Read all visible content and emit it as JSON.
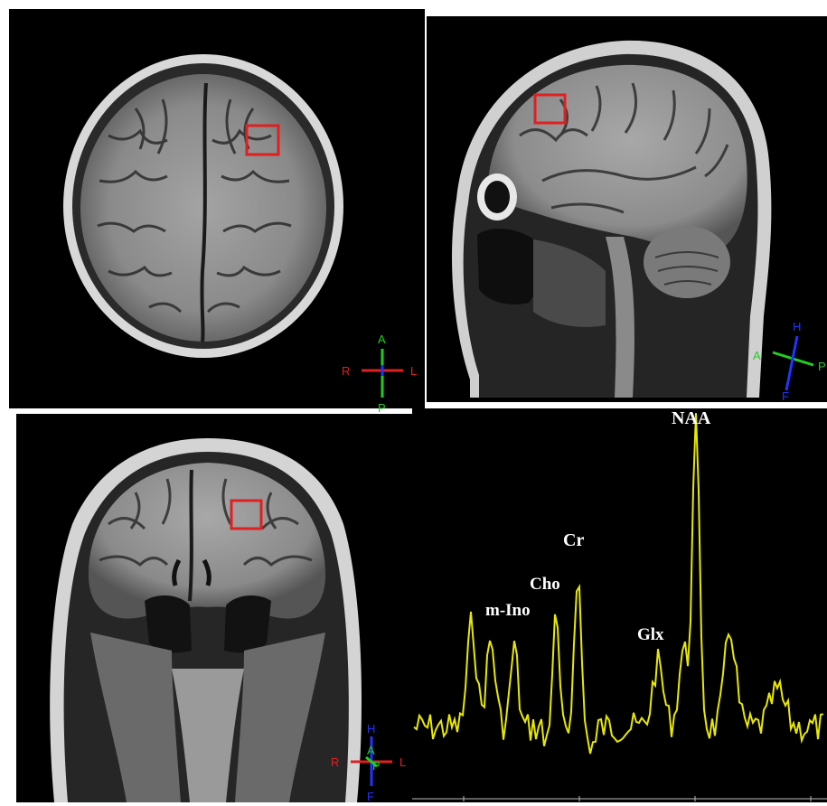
{
  "colors": {
    "roi_box": "#e02020",
    "spectrum_line": "#e8e800",
    "orient_rl": "#e02020",
    "orient_ap": "#22cc22",
    "orient_hf": "#2233ff",
    "panel_bg": "#000000"
  },
  "panels": {
    "axial": {
      "orientation": {
        "anterior": "A",
        "posterior": "P",
        "right": "R",
        "left": "L"
      }
    },
    "sagittal": {
      "orientation": {
        "head": "H",
        "foot": "F",
        "anterior": "A",
        "posterior": "P"
      }
    },
    "coronal": {
      "orientation": {
        "head": "H",
        "foot": "F",
        "anterior": "A",
        "posterior": "P",
        "right": "R",
        "left": "L"
      }
    }
  },
  "spectrum": {
    "peaks": {
      "naa": "NAA",
      "cr": "Cr",
      "cho": "Cho",
      "mino": "m-Ino",
      "glx": "Glx"
    }
  }
}
